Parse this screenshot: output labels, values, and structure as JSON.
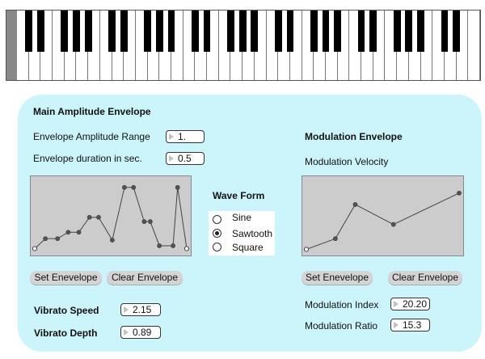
{
  "keyboard": {
    "white_keys": 39
  },
  "main": {
    "title": "Main Amplitude Envelope",
    "range_label": "Envelope Amplitude Range",
    "range_value": "1.",
    "duration_label": "Envelope duration in sec.",
    "duration_value": "0.5",
    "set_button": "Set Enevelope",
    "clear_button": "Clear Envelope",
    "vibrato_speed_label": "Vibrato Speed",
    "vibrato_speed_value": "2.15",
    "vibrato_depth_label": "Vibrato Depth",
    "vibrato_depth_value": "0.89",
    "envelope_points": [
      [
        0,
        0.04
      ],
      [
        0.07,
        0.18
      ],
      [
        0.15,
        0.18
      ],
      [
        0.22,
        0.27
      ],
      [
        0.29,
        0.27
      ],
      [
        0.36,
        0.48
      ],
      [
        0.42,
        0.48
      ],
      [
        0.51,
        0.16
      ],
      [
        0.59,
        0.9
      ],
      [
        0.65,
        0.9
      ],
      [
        0.72,
        0.42
      ],
      [
        0.76,
        0.42
      ],
      [
        0.82,
        0.08
      ],
      [
        0.91,
        0.08
      ],
      [
        0.94,
        0.9
      ],
      [
        1,
        0.04
      ]
    ]
  },
  "waveform": {
    "title": "Wave Form",
    "options": [
      "Sine",
      "Sawtooth",
      "Square"
    ],
    "selected": "Sawtooth"
  },
  "modulation": {
    "title": "Modulation Envelope",
    "velocity_label": "Modulation Velocity",
    "set_button": "Set Enevelope",
    "clear_button": "Clear Envelope",
    "index_label": "Modulation Index",
    "index_value": "20.20",
    "ratio_label": "Modulation Ratio",
    "ratio_value": "15.3",
    "envelope_points": [
      [
        0,
        0.03
      ],
      [
        0.19,
        0.18
      ],
      [
        0.32,
        0.66
      ],
      [
        0.57,
        0.38
      ],
      [
        1,
        0.82
      ]
    ]
  }
}
